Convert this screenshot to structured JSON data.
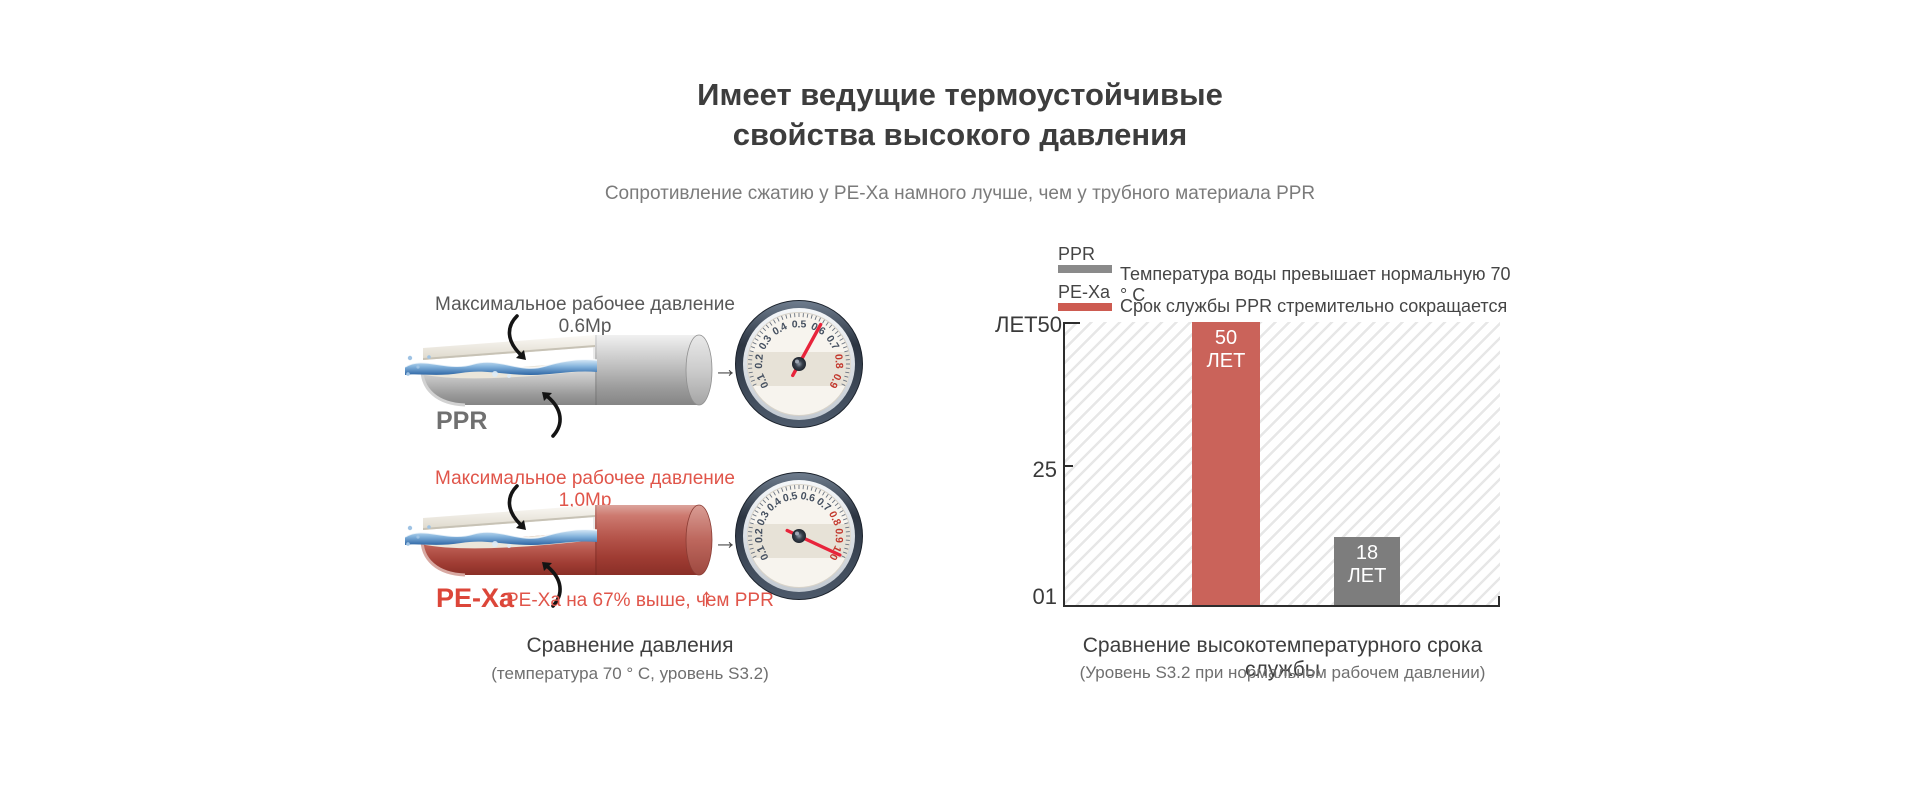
{
  "title": {
    "line1": "Имеет ведущие термоустойчивые",
    "line2": "свойства высокого давления"
  },
  "subtitle": "Сопротивление сжатию у PE-Xa намного лучше, чем у трубного материала PPR",
  "pressure": {
    "ppr": {
      "annotation": "Максимальное рабочее давление 0.6Мр",
      "pipe_label": "PPR",
      "flow_arrow": "→",
      "gauge": {
        "unit_labels": [
          "0.1",
          "0.2",
          "0.3",
          "0.4",
          "0.5",
          "0.6",
          "0.7",
          "0.8",
          "0.9"
        ],
        "red_labels": [
          "0.8",
          "0.9"
        ],
        "needle_value": "0.6"
      }
    },
    "pexa": {
      "annotation": "Максимальное рабочее давление 1,0Мр",
      "pipe_label": "PE-Xa",
      "note": "PE-Xa на 67% выше, чем PPR",
      "note_arrow": "↑",
      "flow_arrow": "→",
      "gauge": {
        "unit_labels": [
          "0.1",
          "0.2",
          "0.3",
          "0.4",
          "0.5",
          "0.6",
          "0.7",
          "0.8",
          "0.9",
          "1.0"
        ],
        "red_labels": [
          "0.8",
          "0.9",
          "1.0"
        ],
        "needle_value": "1.0"
      }
    },
    "caption": "Сравнение давления",
    "caption_sub": "(температура 70 ° C, уровень S3.2)"
  },
  "lifespan": {
    "legend": [
      {
        "label": "PPR",
        "swatch_color": "#8a8a8a",
        "text": "Температура воды превышает нормальную 70 ° C"
      },
      {
        "label": "PE-Xa",
        "swatch_color": "#cd5b51",
        "text": "Срок службы PPR стремительно сокращается"
      }
    ],
    "caption": "Сравнение высокотемпературного срока службы",
    "caption_sub": "(Уровень S3.2 при нормальном рабочем давлении)"
  },
  "chart_data": {
    "type": "bar",
    "title": "Сравнение высокотемпературного срока службы",
    "subtitle": "(Уровень S3.2 при нормальном рабочем давлении)",
    "categories": [
      "PE-Xa",
      "PPR"
    ],
    "values": [
      50,
      18
    ],
    "unit": "ЛЕТ",
    "bar_value_labels": [
      [
        "50",
        "ЛЕТ"
      ],
      [
        "18",
        "ЛЕТ"
      ]
    ],
    "bar_colors": [
      "#ca635a",
      "#7d7d7d"
    ],
    "bar_display_height_pct": [
      100,
      24
    ],
    "ytick_labels": [
      "ЛЕТ50",
      "25",
      "01"
    ],
    "ylim": [
      0,
      50
    ],
    "legend_position": "top-left",
    "background_pattern": "diagonal-hatch"
  },
  "colors": {
    "accent_red_text": "#e0554a",
    "bar_red": "#ca635a",
    "bar_gray": "#7d7d7d",
    "legend_gray": "#8a8a8a",
    "legend_red": "#cd5b51",
    "title_text": "#3d3d3d",
    "axis": "#2d2d2d"
  }
}
